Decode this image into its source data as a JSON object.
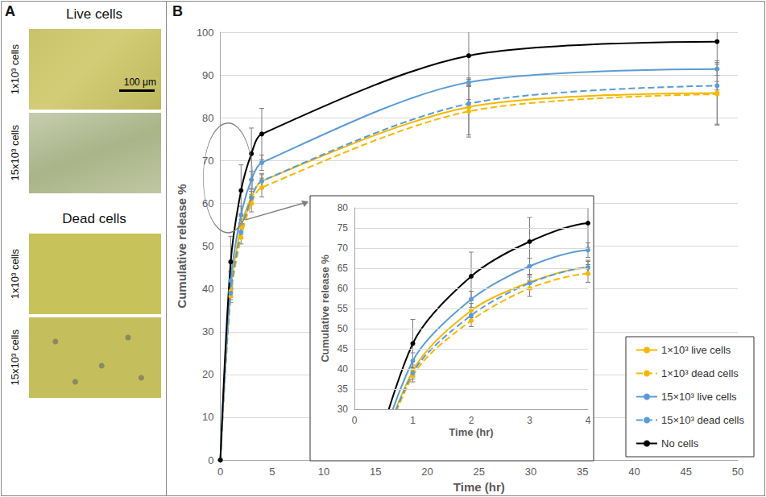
{
  "panel_a": {
    "letter": "A",
    "scale_bar": "100 μm",
    "groups": [
      {
        "title": "Live cells",
        "rows": [
          "1x10³ cells",
          "15x10³ cells"
        ]
      },
      {
        "title": "Dead cells",
        "rows": [
          "1x10³ cells",
          "15x10³ cells"
        ]
      }
    ]
  },
  "chart_data": {
    "letter": "B",
    "type": "line",
    "x_label": "Time (hr)",
    "y_label": "Cumulative release %",
    "x": [
      0,
      1,
      2,
      3,
      4,
      24,
      48
    ],
    "xlim": [
      0,
      50
    ],
    "xticks": [
      0,
      5,
      10,
      15,
      20,
      25,
      30,
      35,
      40,
      45,
      50
    ],
    "ylim": [
      0,
      100
    ],
    "yticks": [
      0,
      10,
      20,
      30,
      40,
      50,
      60,
      70,
      80,
      90,
      100
    ],
    "grid": true,
    "legend": "lower right",
    "marker": "circle",
    "series": [
      {
        "name": "1×10³ live cells",
        "color": "#f5b800",
        "line_style": "solid",
        "values": [
          0,
          39.5,
          54.5,
          61.5,
          65.2,
          82.5,
          85.8
        ],
        "errors": [
          0,
          1.5,
          1.8,
          1.8,
          1.8,
          6.5,
          7.5
        ]
      },
      {
        "name": "1×10³ dead cells",
        "color": "#f5b800",
        "line_style": "dashed",
        "values": [
          0,
          38.3,
          52,
          60,
          63.7,
          81.5,
          85.5
        ],
        "errors": [
          0,
          1.5,
          1.5,
          2,
          2.2,
          6,
          7
        ]
      },
      {
        "name": "15×10³ live cells",
        "color": "#5b9bd5",
        "line_style": "solid",
        "values": [
          0,
          42,
          57.3,
          65.5,
          69.5,
          88.3,
          91.4
        ],
        "errors": [
          0,
          2,
          2,
          2,
          1.8,
          1,
          1.5
        ]
      },
      {
        "name": "15×10³ dead cells",
        "color": "#5b9bd5",
        "line_style": "dashed",
        "values": [
          0,
          39,
          53.3,
          61.3,
          65.2,
          83.3,
          87.5
        ],
        "errors": [
          0,
          1.5,
          1.5,
          1.5,
          1.5,
          1,
          1
        ]
      },
      {
        "name": "No cells",
        "color": "#000000",
        "line_style": "solid",
        "values": [
          0,
          46.3,
          63,
          71.6,
          76.2,
          94.5,
          97.8
        ],
        "errors": [
          0,
          6,
          6,
          6,
          6,
          6.8,
          6.5
        ]
      }
    ],
    "inset": {
      "x_label": "Time (hr)",
      "y_label": "Cumulative release %",
      "xlim": [
        0,
        4
      ],
      "xticks": [
        0,
        1,
        2,
        3,
        4
      ],
      "ylim": [
        30,
        80
      ],
      "yticks": [
        30,
        35,
        40,
        45,
        50,
        55,
        60,
        65,
        70,
        75,
        80
      ]
    }
  }
}
